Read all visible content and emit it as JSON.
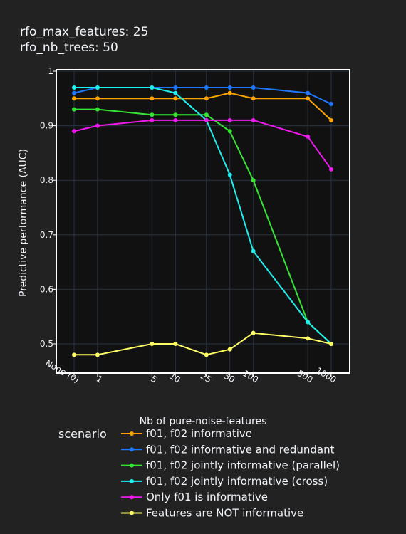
{
  "header": {
    "line1": "rfo_max_features: 25",
    "line2": "rfo_nb_trees: 50"
  },
  "chart_data": {
    "type": "line",
    "xlabel": "Nb of pure-noise-features",
    "ylabel": "Predictive performance (AUC)",
    "x_scale": "log",
    "x_tick_labels": [
      "None (0)",
      "1",
      "5",
      "10",
      "25",
      "50",
      "100",
      "500",
      "1000"
    ],
    "x": [
      0,
      1,
      5,
      10,
      25,
      50,
      100,
      500,
      1000
    ],
    "ylim": [
      0.45,
      1.0
    ],
    "y_ticks": [
      0.5,
      0.6,
      0.7,
      0.8,
      0.9,
      1
    ],
    "y_tick_labels": [
      "0.5",
      "0.6",
      "0.7",
      "0.8",
      "0.9",
      "1"
    ],
    "grid": true,
    "legend_title": "scenario",
    "legend_position": "bottom",
    "background": "#111111",
    "series": [
      {
        "name": "f01, f02 informative",
        "color": "#FFA500",
        "values": [
          0.95,
          0.95,
          0.95,
          0.95,
          0.95,
          0.96,
          0.95,
          0.95,
          0.91
        ]
      },
      {
        "name": "f01, f02 informative and redundant",
        "color": "#1E78FF",
        "values": [
          0.96,
          0.97,
          0.97,
          0.97,
          0.97,
          0.97,
          0.97,
          0.96,
          0.94
        ]
      },
      {
        "name": "f01, f02 jointly informative (parallel)",
        "color": "#32E632",
        "values": [
          0.93,
          0.93,
          0.92,
          0.92,
          0.92,
          0.89,
          0.8,
          0.54,
          0.5
        ]
      },
      {
        "name": "f01, f02 jointly informative (cross)",
        "color": "#1EF0F0",
        "values": [
          0.97,
          0.97,
          0.97,
          0.96,
          0.91,
          0.81,
          0.67,
          0.54,
          0.5
        ]
      },
      {
        "name": "Only f01 is informative",
        "color": "#F019F0",
        "values": [
          0.89,
          0.9,
          0.91,
          0.91,
          0.91,
          0.91,
          0.91,
          0.88,
          0.82
        ]
      },
      {
        "name": "Features are NOT informative",
        "color": "#FFFF64",
        "values": [
          0.48,
          0.48,
          0.5,
          0.5,
          0.48,
          0.49,
          0.52,
          0.51,
          0.5
        ]
      }
    ]
  }
}
